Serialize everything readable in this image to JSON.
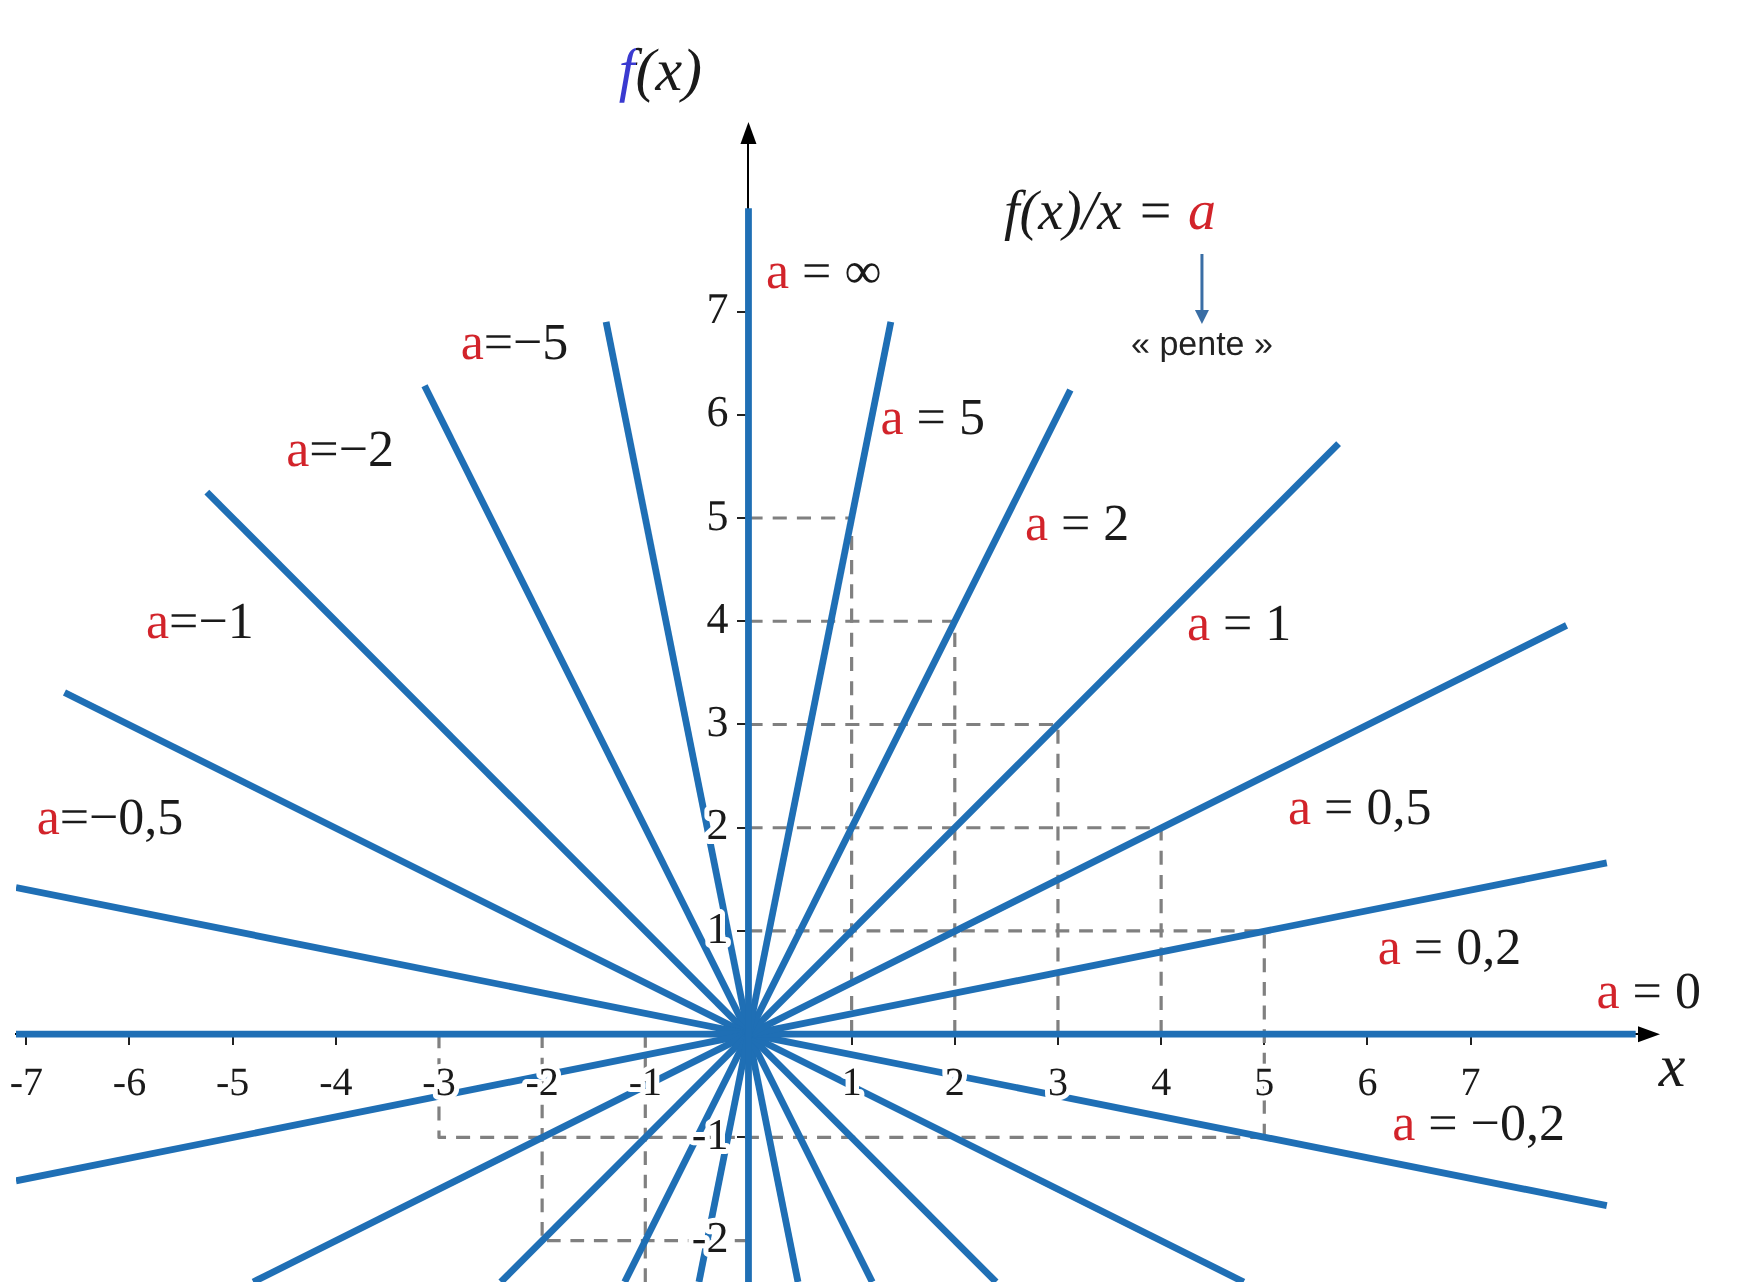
{
  "chart_data": {
    "type": "line",
    "xlabel": "x",
    "ylabel": "f(x)",
    "annotations": [
      "f(x)/x = a",
      "« pente »"
    ],
    "xlim": [
      -7.1,
      8.7
    ],
    "ylim": [
      -2.4,
      8.7
    ],
    "xticks": [
      -7,
      -6,
      -5,
      -4,
      -3,
      -2,
      -1,
      1,
      2,
      3,
      4,
      5,
      6,
      7
    ],
    "yticks": [
      -2,
      -1,
      1,
      2,
      3,
      4,
      5,
      6,
      7
    ],
    "grid": false,
    "legend": false,
    "marker": "none",
    "line_style": "solid",
    "series": [
      {
        "name": "a = ∞",
        "color": "#1f6fb5",
        "x": [
          0,
          0
        ],
        "values": [
          -2.4,
          8
        ]
      },
      {
        "name": "a = 5",
        "color": "#1f6fb5",
        "x": [
          -0.48,
          1.38
        ],
        "values": [
          -2.4,
          6.9
        ]
      },
      {
        "name": "a = 2",
        "color": "#1f6fb5",
        "x": [
          -1.2,
          3.12
        ],
        "values": [
          -2.4,
          6.24
        ]
      },
      {
        "name": "a = 1",
        "color": "#1f6fb5",
        "x": [
          -2.4,
          5.72
        ],
        "values": [
          -2.4,
          5.72
        ]
      },
      {
        "name": "a = 0,5",
        "color": "#1f6fb5",
        "x": [
          -4.8,
          7.93
        ],
        "values": [
          -2.4,
          3.96
        ]
      },
      {
        "name": "a = 0,2",
        "color": "#1f6fb5",
        "x": [
          -7.1,
          8.32
        ],
        "values": [
          -1.42,
          1.66
        ]
      },
      {
        "name": "a = 0",
        "color": "#1f6fb5",
        "x": [
          -7.1,
          8.6
        ],
        "values": [
          0,
          0
        ]
      },
      {
        "name": "a = −0,2",
        "color": "#1f6fb5",
        "x": [
          -7.1,
          8.32
        ],
        "values": [
          1.42,
          -1.66
        ]
      },
      {
        "name": "a=−0,5",
        "color": "#1f6fb5",
        "x": [
          -6.63,
          4.8
        ],
        "values": [
          3.31,
          -2.4
        ]
      },
      {
        "name": "a=−1",
        "color": "#1f6fb5",
        "x": [
          -5.25,
          2.4
        ],
        "values": [
          5.25,
          -2.4
        ]
      },
      {
        "name": "a=−2",
        "color": "#1f6fb5",
        "x": [
          -3.14,
          1.2
        ],
        "values": [
          6.28,
          -2.4
        ]
      },
      {
        "name": "a=−5",
        "color": "#1f6fb5",
        "x": [
          -1.38,
          0.48
        ],
        "values": [
          6.9,
          -2.4
        ]
      },
      {
        "color": "#808080",
        "line_style": "dashed",
        "x": [
          0,
          1,
          1
        ],
        "values": [
          5,
          5,
          0
        ]
      },
      {
        "color": "#808080",
        "line_style": "dashed",
        "x": [
          0,
          2,
          2
        ],
        "values": [
          4,
          4,
          0
        ]
      },
      {
        "color": "#808080",
        "line_style": "dashed",
        "x": [
          0,
          3,
          3
        ],
        "values": [
          3,
          3,
          0
        ]
      },
      {
        "color": "#808080",
        "line_style": "dashed",
        "x": [
          0,
          4,
          4
        ],
        "values": [
          2,
          2,
          0
        ]
      },
      {
        "color": "#808080",
        "line_style": "dashed",
        "x": [
          0,
          5,
          5
        ],
        "values": [
          1,
          1,
          -1
        ]
      },
      {
        "color": "#808080",
        "line_style": "dashed",
        "x": [
          -3,
          -3,
          5
        ],
        "values": [
          0,
          -1,
          -1
        ]
      },
      {
        "color": "#808080",
        "line_style": "dashed",
        "x": [
          -2,
          -2,
          0
        ],
        "values": [
          0,
          -2,
          -2
        ]
      },
      {
        "color": "#808080",
        "line_style": "dashed",
        "x": [
          -1,
          -1
        ],
        "values": [
          0,
          -2.4
        ]
      }
    ]
  }
}
